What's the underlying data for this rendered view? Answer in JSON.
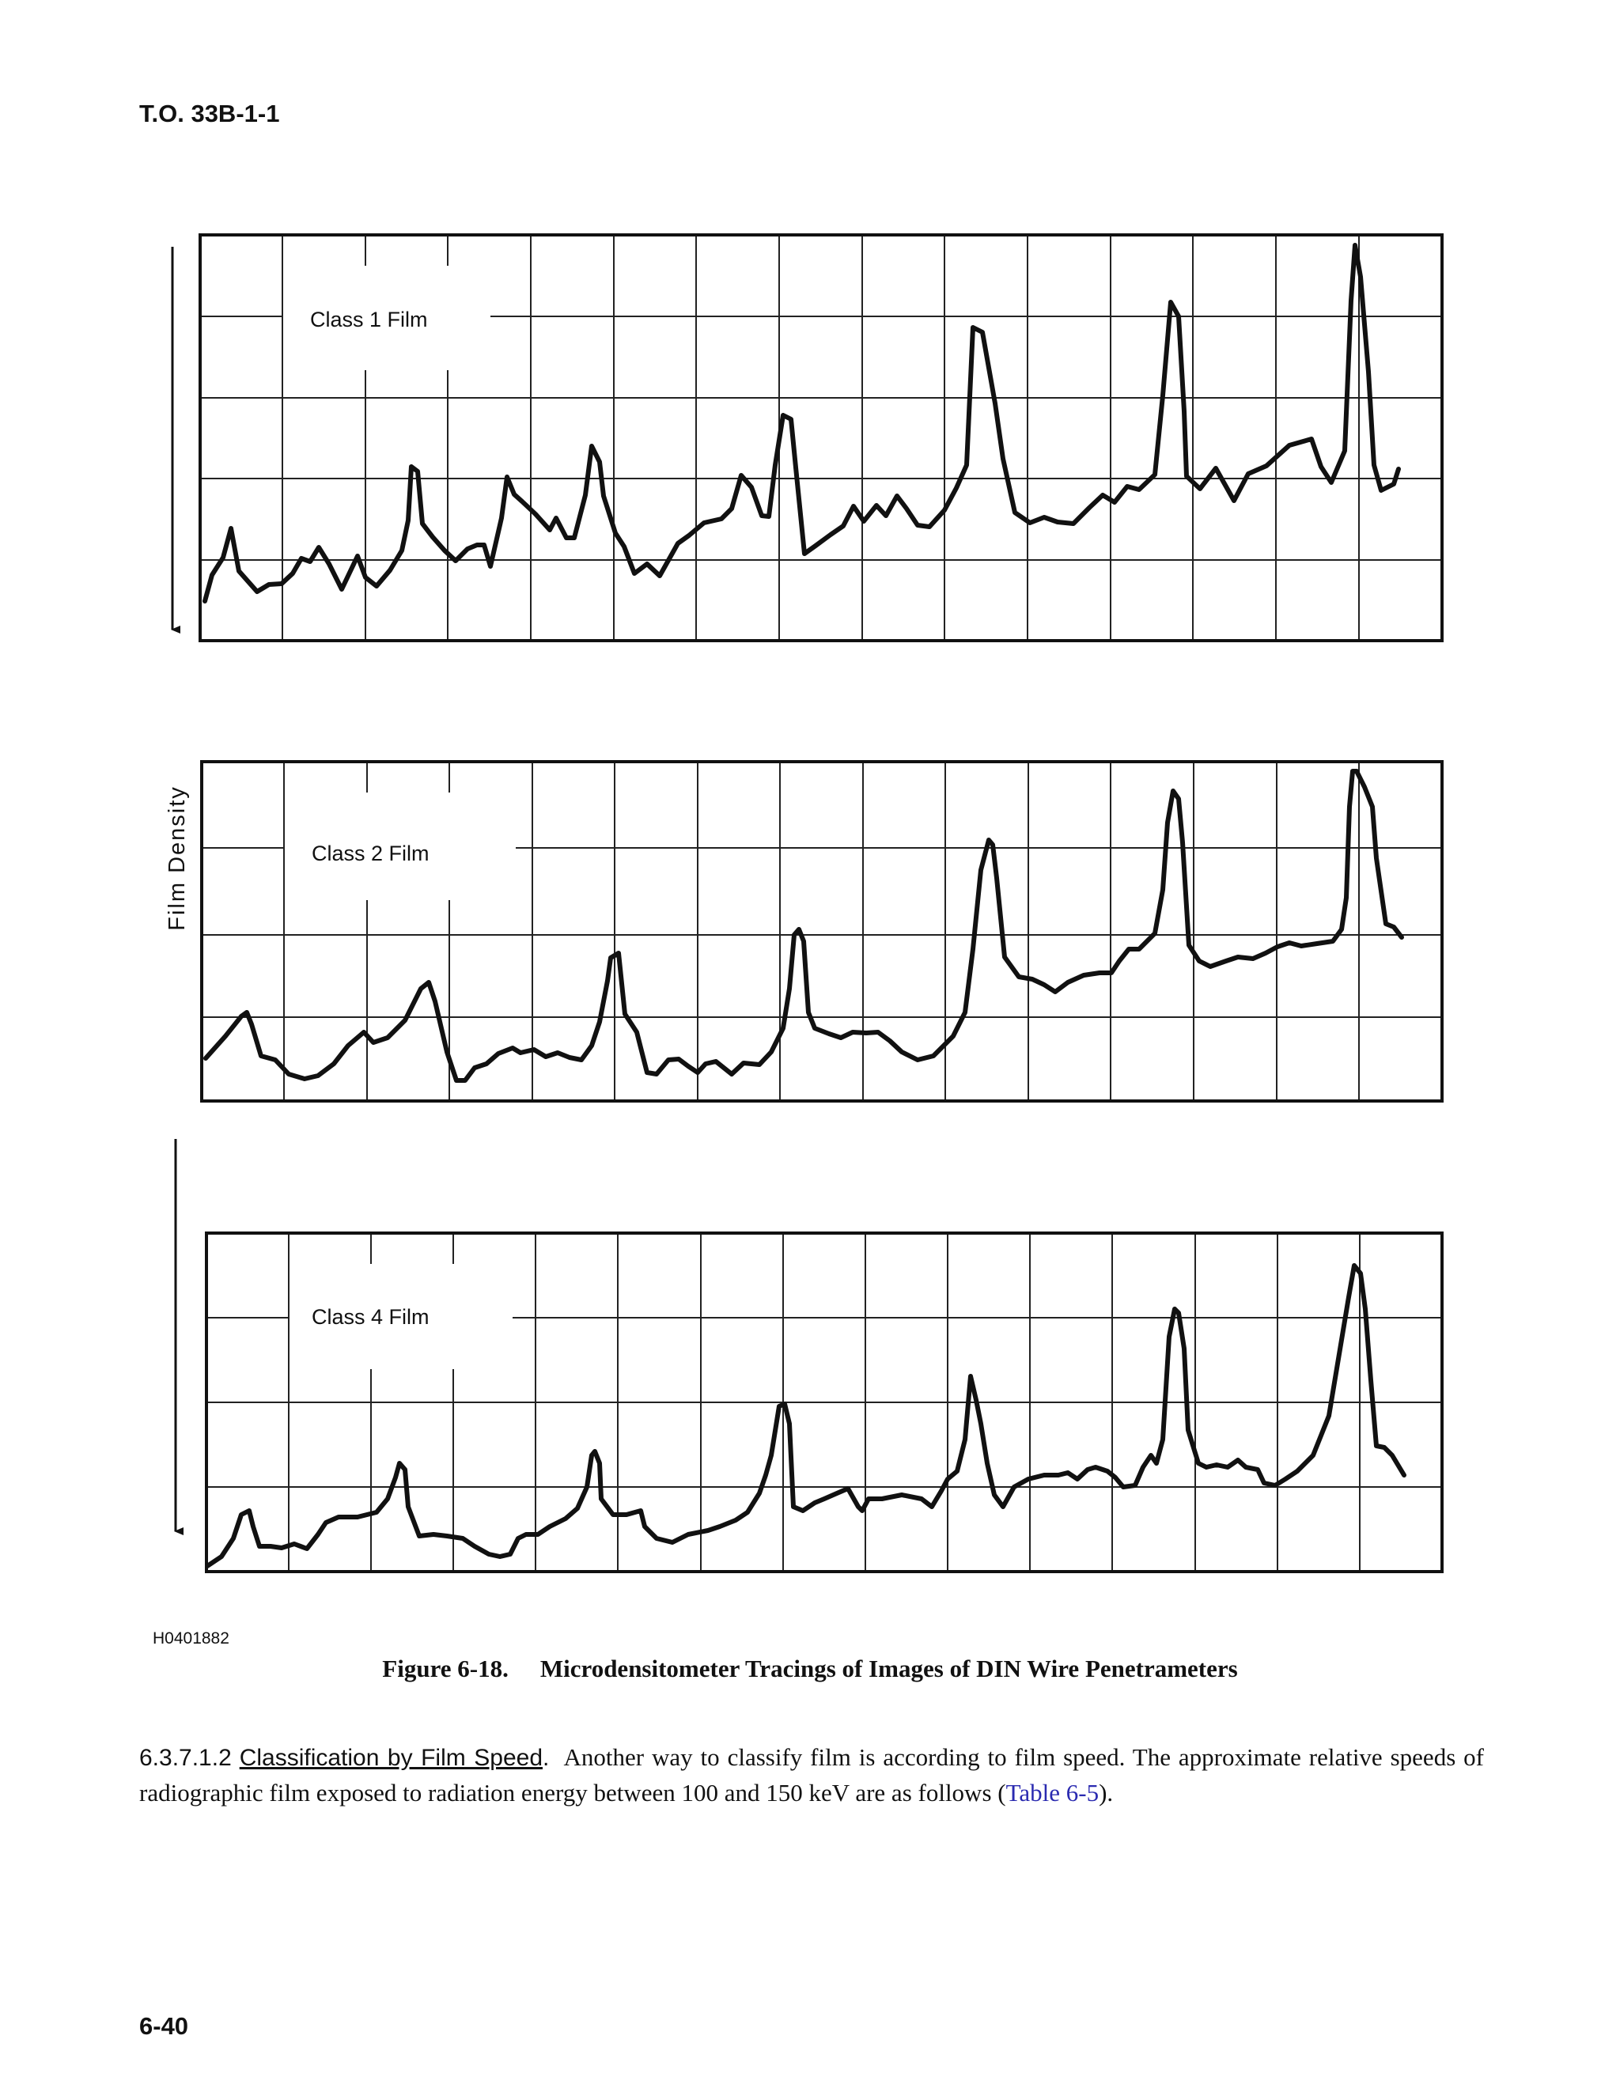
{
  "header": {
    "doc_id": "T.O. 33B-1-1"
  },
  "figure": {
    "y_axis_label": "Film Density",
    "figure_number": "H0401882",
    "panels": [
      {
        "label": "Class 1 Film"
      },
      {
        "label": "Class 2 Film"
      },
      {
        "label": "Class 4 Film"
      }
    ],
    "caption_number": "Figure 6-18.",
    "caption_title": "Microdensitometer Tracings of Images of DIN Wire Penetrameters"
  },
  "paragraph": {
    "number": "6.3.7.1.2",
    "heading": "Classification by Film Speed",
    "text_before_link": "Another way to classify film is according to film speed. The approximate relative speeds of radiographic film exposed to radiation energy between 100 and 150 keV are as follows (",
    "link_text": "Table 6-5",
    "text_after_link": ")."
  },
  "footer": {
    "page_number": "6-40"
  }
}
